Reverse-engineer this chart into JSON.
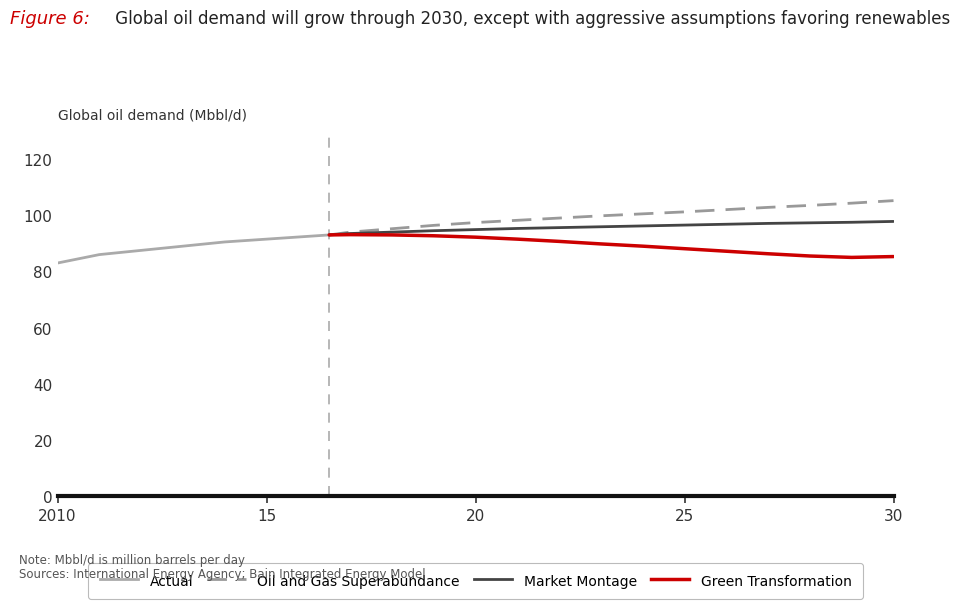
{
  "title_fig": "Figure 6:",
  "title_text": " Global oil demand will grow through 2030, except with aggressive assumptions favoring renewables",
  "ylabel": "Global oil demand (Mbbl/d)",
  "ylim": [
    0,
    130
  ],
  "yticks": [
    0,
    20,
    40,
    60,
    80,
    100,
    120
  ],
  "xlim": [
    2010,
    2030
  ],
  "xticks": [
    2010,
    2015,
    2020,
    2025,
    2030
  ],
  "xticklabels": [
    "2010",
    "15",
    "20",
    "25",
    "30"
  ],
  "vline_x": 2016.5,
  "note": "Note: Mbbl/d is million barrels per day",
  "sources": "Sources: International Energy Agency; Bain Integrated Energy Model",
  "actual_x": [
    2010,
    2011,
    2012,
    2013,
    2014,
    2015,
    2016,
    2016.5
  ],
  "actual_y": [
    83.0,
    86.0,
    87.5,
    89.0,
    90.5,
    91.5,
    92.5,
    93.0
  ],
  "ogs_x": [
    2016.5,
    2017,
    2018,
    2019,
    2020,
    2021,
    2022,
    2023,
    2024,
    2025,
    2026,
    2027,
    2028,
    2029,
    2030
  ],
  "ogs_y": [
    93.0,
    94.0,
    95.2,
    96.4,
    97.4,
    98.2,
    99.0,
    99.8,
    100.5,
    101.2,
    102.0,
    102.8,
    103.5,
    104.3,
    105.2
  ],
  "mm_x": [
    2016.5,
    2017,
    2018,
    2019,
    2020,
    2021,
    2022,
    2023,
    2024,
    2025,
    2026,
    2027,
    2028,
    2029,
    2030
  ],
  "mm_y": [
    93.0,
    93.5,
    94.0,
    94.5,
    94.9,
    95.3,
    95.6,
    95.9,
    96.2,
    96.5,
    96.8,
    97.1,
    97.3,
    97.5,
    97.8
  ],
  "gt_x": [
    2016.5,
    2017,
    2018,
    2019,
    2020,
    2021,
    2022,
    2023,
    2024,
    2025,
    2026,
    2027,
    2028,
    2029,
    2030
  ],
  "gt_y": [
    93.0,
    93.1,
    93.0,
    92.7,
    92.2,
    91.5,
    90.7,
    89.8,
    89.0,
    88.1,
    87.2,
    86.3,
    85.5,
    85.0,
    85.3
  ],
  "color_actual": "#aaaaaa",
  "color_ogs": "#999999",
  "color_mm": "#444444",
  "color_gt": "#cc0000",
  "color_vline": "#aaaaaa",
  "color_title_fig": "#cc0000",
  "color_title_text": "#222222",
  "color_note": "#555555",
  "background_color": "#ffffff",
  "legend_labels": [
    "Actual",
    "Oil and Gas Superabundance",
    "Market Montage",
    "Green Transformation"
  ]
}
